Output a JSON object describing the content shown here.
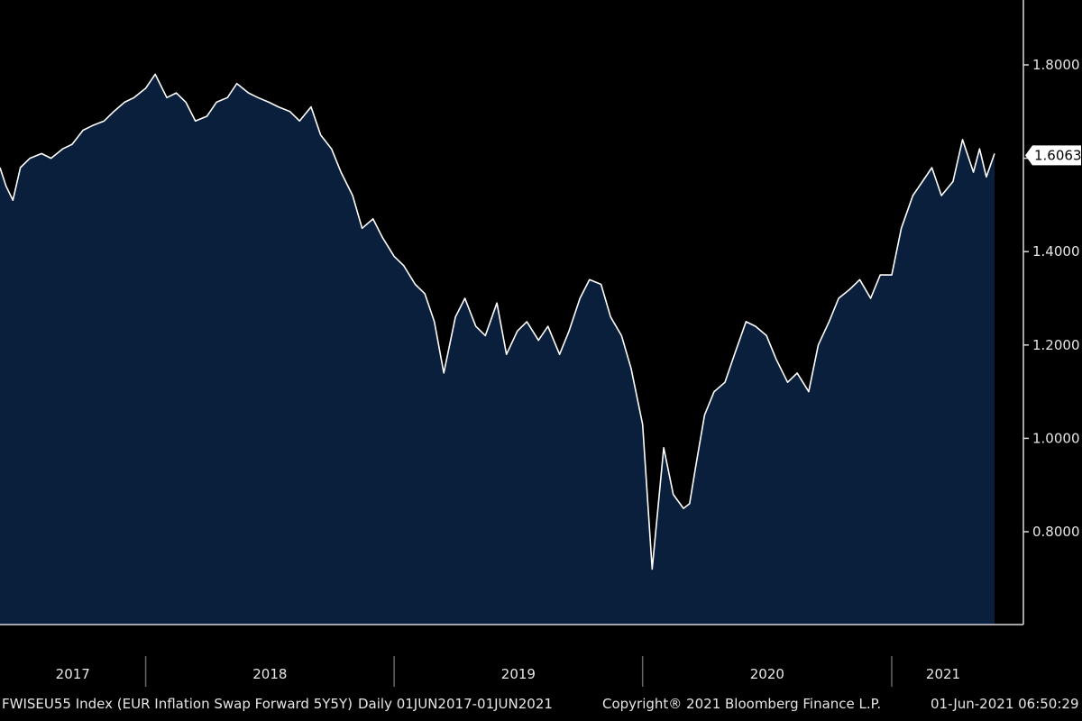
{
  "colors": {
    "background": "#000000",
    "area_fill": "#0a1f3c",
    "line": "#ffffff",
    "axis": "#d9d9d9",
    "text": "#e6e6e6",
    "last_label_bg": "#ffffff",
    "last_label_text": "#000000"
  },
  "footer": {
    "ticker": "FWISEU55 Index (EUR Inflation Swap Forward 5Y5Y)",
    "frequency_range": "Daily 01JUN2017-01JUN2021",
    "copyright": "Copyright® 2021 Bloomberg Finance L.P.",
    "timestamp": "01-Jun-2021 06:50:29"
  },
  "chart_data": {
    "type": "area",
    "title": "",
    "xlabel": "",
    "ylabel": "",
    "grid": false,
    "y_axis_side": "right",
    "ylim": [
      0.62,
      1.88
    ],
    "xlim": [
      "2017-06-01",
      "2021-06-01"
    ],
    "y_ticks": [
      "0.8000",
      "1.0000",
      "1.2000",
      "1.4000",
      "1.6000",
      "1.8000"
    ],
    "x_categories": [
      "2017",
      "2018",
      "2019",
      "2020",
      "2021"
    ],
    "x_boundaries": [
      "2018-01-01",
      "2019-01-01",
      "2020-01-01",
      "2021-01-01"
    ],
    "last_value_label": "1.6063",
    "series": [
      {
        "x": [
          "2017-06-01",
          "2017-06-10",
          "2017-06-20",
          "2017-07-01",
          "2017-07-15",
          "2017-08-01",
          "2017-08-15",
          "2017-09-01",
          "2017-09-15",
          "2017-10-01",
          "2017-10-15",
          "2017-11-01",
          "2017-11-15",
          "2017-12-01",
          "2017-12-15",
          "2018-01-01",
          "2018-01-15",
          "2018-02-01",
          "2018-02-15",
          "2018-03-01",
          "2018-03-15",
          "2018-04-01",
          "2018-04-15",
          "2018-05-01",
          "2018-05-15",
          "2018-06-01",
          "2018-06-15",
          "2018-07-01",
          "2018-07-15",
          "2018-08-01",
          "2018-08-15",
          "2018-09-01",
          "2018-09-15",
          "2018-10-01",
          "2018-10-15",
          "2018-11-01",
          "2018-11-15",
          "2018-12-01",
          "2018-12-15",
          "2019-01-01",
          "2019-01-15",
          "2019-02-01",
          "2019-02-15",
          "2019-03-01",
          "2019-03-15",
          "2019-04-01",
          "2019-04-15",
          "2019-05-01",
          "2019-05-15",
          "2019-06-01",
          "2019-06-15",
          "2019-07-01",
          "2019-07-15",
          "2019-08-01",
          "2019-08-15",
          "2019-09-01",
          "2019-09-15",
          "2019-10-01",
          "2019-10-15",
          "2019-11-01",
          "2019-11-15",
          "2019-12-01",
          "2019-12-15",
          "2020-01-01",
          "2020-01-15",
          "2020-02-01",
          "2020-02-15",
          "2020-03-01",
          "2020-03-10",
          "2020-03-19",
          "2020-04-01",
          "2020-04-15",
          "2020-05-01",
          "2020-05-15",
          "2020-06-01",
          "2020-06-15",
          "2020-07-01",
          "2020-07-15",
          "2020-08-01",
          "2020-08-15",
          "2020-09-01",
          "2020-09-15",
          "2020-10-01",
          "2020-10-15",
          "2020-11-01",
          "2020-11-15",
          "2020-12-01",
          "2020-12-15",
          "2021-01-01",
          "2021-01-15",
          "2021-02-01",
          "2021-02-15",
          "2021-03-01",
          "2021-03-15",
          "2021-04-01",
          "2021-04-15",
          "2021-05-01",
          "2021-05-10",
          "2021-05-20",
          "2021-06-01"
        ],
        "values": [
          1.58,
          1.54,
          1.51,
          1.58,
          1.6,
          1.61,
          1.6,
          1.62,
          1.63,
          1.66,
          1.67,
          1.68,
          1.7,
          1.72,
          1.73,
          1.75,
          1.78,
          1.73,
          1.74,
          1.72,
          1.68,
          1.69,
          1.72,
          1.73,
          1.76,
          1.74,
          1.73,
          1.72,
          1.71,
          1.7,
          1.68,
          1.71,
          1.65,
          1.62,
          1.57,
          1.52,
          1.45,
          1.47,
          1.43,
          1.39,
          1.37,
          1.33,
          1.31,
          1.25,
          1.14,
          1.26,
          1.3,
          1.24,
          1.22,
          1.29,
          1.18,
          1.23,
          1.25,
          1.21,
          1.24,
          1.18,
          1.23,
          1.3,
          1.34,
          1.33,
          1.26,
          1.22,
          1.15,
          1.03,
          0.72,
          0.98,
          0.88,
          0.85,
          0.86,
          0.94,
          1.05,
          1.1,
          1.12,
          1.18,
          1.25,
          1.24,
          1.22,
          1.17,
          1.12,
          1.14,
          1.1,
          1.2,
          1.25,
          1.3,
          1.32,
          1.34,
          1.3,
          1.35,
          1.35,
          1.45,
          1.52,
          1.55,
          1.58,
          1.52,
          1.55,
          1.64,
          1.57,
          1.62,
          1.56,
          1.61
        ]
      }
    ]
  }
}
